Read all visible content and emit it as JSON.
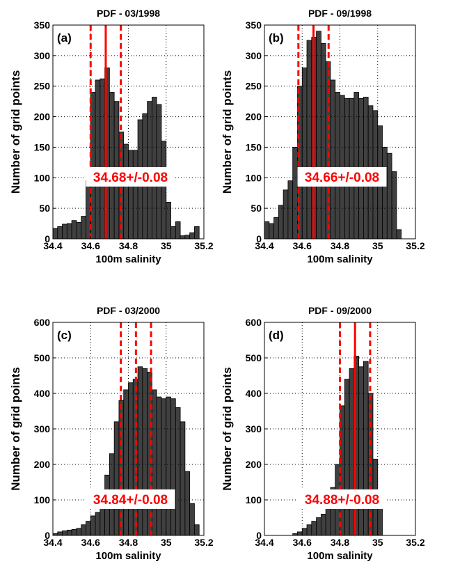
{
  "chart_data": [
    {
      "type": "histogram",
      "title": "PDF - 03/1998",
      "panel_label": "(a)",
      "xlabel": "100m salinity",
      "ylabel": "Number of grid points",
      "bins": [
        34.4,
        34.425,
        34.45,
        34.475,
        34.5,
        34.525,
        34.55,
        34.575,
        34.6,
        34.625,
        34.65,
        34.675,
        34.7,
        34.725,
        34.75,
        34.775,
        34.8,
        34.825,
        34.85,
        34.875,
        34.9,
        34.925,
        34.95,
        34.975,
        35,
        35.025,
        35.05,
        35.075,
        35.1,
        35.125,
        35.15,
        35.175,
        35.2
      ],
      "values": [
        17,
        20,
        24,
        25,
        30,
        27,
        37,
        95,
        240,
        260,
        262,
        280,
        240,
        225,
        175,
        155,
        145,
        145,
        195,
        205,
        225,
        232,
        220,
        160,
        60,
        20,
        28,
        5,
        6,
        10,
        20,
        0
      ],
      "mean": 34.68,
      "spread": 0.08,
      "annotation": "34.68+/-0.08",
      "xlim": [
        34.4,
        35.2
      ],
      "xticks": [
        34.4,
        34.6,
        34.8,
        35,
        35.2
      ],
      "ylim": [
        0,
        350
      ],
      "yticks": [
        0,
        50,
        100,
        150,
        200,
        250,
        300,
        350
      ],
      "color": "#404040",
      "line_color": "#ff0000",
      "grid": true
    },
    {
      "type": "histogram",
      "title": "PDF - 09/1998",
      "panel_label": "(b)",
      "xlabel": "100m salinity",
      "ylabel": "Number of grid points",
      "bins": [
        34.4,
        34.425,
        34.45,
        34.475,
        34.5,
        34.525,
        34.55,
        34.575,
        34.6,
        34.625,
        34.65,
        34.675,
        34.7,
        34.725,
        34.75,
        34.775,
        34.8,
        34.825,
        34.85,
        34.875,
        34.9,
        34.925,
        34.95,
        34.975,
        35,
        35.025,
        35.05,
        35.075,
        35.1,
        35.125,
        35.15,
        35.175,
        35.2
      ],
      "values": [
        28,
        25,
        35,
        55,
        80,
        95,
        150,
        250,
        280,
        325,
        330,
        340,
        320,
        290,
        260,
        240,
        235,
        230,
        230,
        240,
        230,
        232,
        218,
        210,
        185,
        150,
        140,
        110,
        15,
        0,
        0,
        0
      ],
      "mean": 34.66,
      "spread": 0.08,
      "annotation": "34.66+/-0.08",
      "xlim": [
        34.4,
        35.2
      ],
      "xticks": [
        34.4,
        34.6,
        34.8,
        35,
        35.2
      ],
      "ylim": [
        0,
        350
      ],
      "yticks": [
        0,
        50,
        100,
        150,
        200,
        250,
        300,
        350
      ],
      "color": "#404040",
      "line_color": "#ff0000",
      "grid": true
    },
    {
      "type": "histogram",
      "title": "PDF - 03/2000",
      "panel_label": "(c)",
      "xlabel": "100m salinity",
      "ylabel": "Number of grid points",
      "bins": [
        34.4,
        34.425,
        34.45,
        34.475,
        34.5,
        34.525,
        34.55,
        34.575,
        34.6,
        34.625,
        34.65,
        34.675,
        34.7,
        34.725,
        34.75,
        34.775,
        34.8,
        34.825,
        34.85,
        34.875,
        34.9,
        34.925,
        34.95,
        34.975,
        35,
        35.025,
        35.05,
        35.075,
        35.1,
        35.125,
        35.15,
        35.175,
        35.2
      ],
      "values": [
        5,
        10,
        13,
        15,
        17,
        20,
        30,
        40,
        55,
        65,
        100,
        170,
        230,
        320,
        380,
        410,
        430,
        440,
        475,
        470,
        460,
        410,
        390,
        385,
        390,
        385,
        360,
        320,
        180,
        90,
        30,
        0
      ],
      "mean": 34.84,
      "spread": 0.08,
      "annotation": "34.84+/-0.08",
      "mean_dashed": true,
      "xlim": [
        34.4,
        35.2
      ],
      "xticks": [
        34.4,
        34.6,
        34.8,
        35,
        35.2
      ],
      "ylim": [
        0,
        600
      ],
      "yticks": [
        0,
        100,
        200,
        300,
        400,
        500,
        600
      ],
      "color": "#404040",
      "line_color": "#ff0000",
      "grid": true
    },
    {
      "type": "histogram",
      "title": "PDF - 09/2000",
      "panel_label": "(d)",
      "xlabel": "100m salinity",
      "ylabel": "Number of grid points",
      "bins": [
        34.4,
        34.425,
        34.45,
        34.475,
        34.5,
        34.525,
        34.55,
        34.575,
        34.6,
        34.625,
        34.65,
        34.675,
        34.7,
        34.725,
        34.75,
        34.775,
        34.8,
        34.825,
        34.85,
        34.875,
        34.9,
        34.925,
        34.95,
        34.975,
        35,
        35.025,
        35.05,
        35.075,
        35.1,
        35.125,
        35.15,
        35.175,
        35.2
      ],
      "values": [
        0,
        0,
        0,
        0,
        0,
        0,
        5,
        10,
        20,
        30,
        40,
        50,
        60,
        90,
        135,
        200,
        365,
        440,
        470,
        505,
        475,
        490,
        400,
        215,
        80,
        0,
        0,
        0,
        0,
        0,
        0,
        0
      ],
      "mean": 34.88,
      "spread": 0.08,
      "annotation": "34.88+/-0.08",
      "xlim": [
        34.4,
        35.2
      ],
      "xticks": [
        34.4,
        34.6,
        34.8,
        35,
        35.2
      ],
      "ylim": [
        0,
        600
      ],
      "yticks": [
        0,
        100,
        200,
        300,
        400,
        500,
        600
      ],
      "color": "#404040",
      "line_color": "#ff0000",
      "grid": true
    }
  ]
}
